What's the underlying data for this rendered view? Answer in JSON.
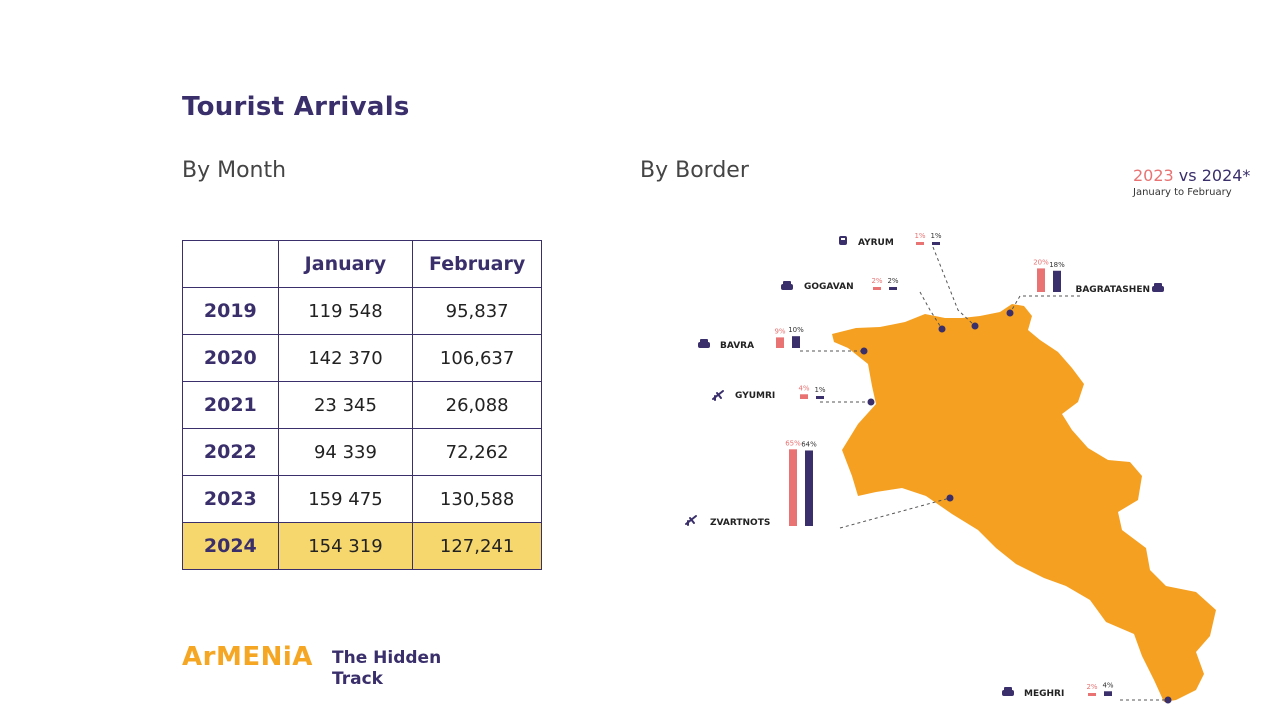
{
  "header": {
    "title": "Tourist Arrivals"
  },
  "sections": {
    "by_month": "By Month",
    "by_border": "By Border"
  },
  "legend": {
    "year_a": "2023",
    "vs": " vs ",
    "year_b": "2024*",
    "period": "January to February"
  },
  "colors": {
    "y2023": "#e97373",
    "y2024": "#3a2f6b",
    "map_fill": "#f5a021",
    "highlight": "#f5d76e",
    "brand": "#f5a623"
  },
  "table": {
    "headers": [
      "",
      "January",
      "February"
    ],
    "rows": [
      {
        "year": "2019",
        "january": "119 548",
        "february": "95,837"
      },
      {
        "year": "2020",
        "january": "142 370",
        "february": "106,637"
      },
      {
        "year": "2021",
        "january": "23 345",
        "february": "26,088"
      },
      {
        "year": "2022",
        "january": "94 339",
        "february": "72,262"
      },
      {
        "year": "2023",
        "january": "159 475",
        "february": "130,588"
      },
      {
        "year": "2024",
        "january": "154 319",
        "february": "127,241"
      }
    ]
  },
  "chart_data": [
    {
      "type": "table",
      "title": "By Month",
      "categories": [
        "2019",
        "2020",
        "2021",
        "2022",
        "2023",
        "2024"
      ],
      "series": [
        {
          "name": "January",
          "values": [
            119548,
            142370,
            23345,
            94339,
            159475,
            154319
          ]
        },
        {
          "name": "February",
          "values": [
            95837,
            106637,
            26088,
            72262,
            130588,
            127241
          ]
        }
      ]
    },
    {
      "type": "bar",
      "title": "By Border",
      "categories": [
        "AYRUM",
        "GOGAVAN",
        "BAGRATASHEN",
        "BAVRA",
        "GYUMRI",
        "ZVARTNOTS",
        "MEGHRI"
      ],
      "series": [
        {
          "name": "2023",
          "values": [
            1,
            2,
            20,
            9,
            4,
            65,
            2
          ]
        },
        {
          "name": "2024*",
          "values": [
            1,
            2,
            18,
            10,
            1,
            64,
            4
          ]
        }
      ],
      "unit": "%",
      "icons": [
        "train-icon",
        "car-icon",
        "car-icon",
        "car-icon",
        "plane-icon",
        "plane-icon",
        "car-icon"
      ]
    }
  ],
  "brand": {
    "name": "ArMENiA",
    "tagline": "The Hidden Track"
  }
}
